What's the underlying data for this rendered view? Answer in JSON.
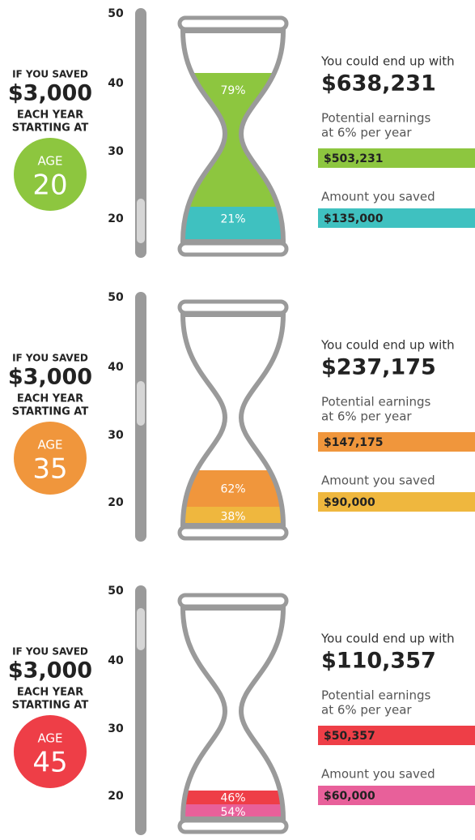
{
  "panels": [
    {
      "intro": [
        "IF YOU SAVED",
        "$3,000",
        "EACH YEAR",
        "STARTING AT"
      ],
      "age_label": "AGE",
      "age": "20",
      "scale": [
        "50",
        "40",
        "30",
        "20"
      ],
      "pct_earnings": "79%",
      "pct_saved": "21%",
      "total_label": "You could end up with",
      "total": "$638,231",
      "earnings_label": [
        "Potential earnings",
        "at 6% per year"
      ],
      "earnings": "$503,231",
      "saved_label": "Amount you saved",
      "saved": "$135,000",
      "colors": {
        "age": "#8dc63f",
        "earnings": "#8dc63f",
        "saved": "#3fc1c0"
      }
    },
    {
      "intro": [
        "IF YOU SAVED",
        "$3,000",
        "EACH YEAR",
        "STARTING AT"
      ],
      "age_label": "AGE",
      "age": "35",
      "scale": [
        "50",
        "40",
        "30",
        "20"
      ],
      "pct_earnings": "62%",
      "pct_saved": "38%",
      "total_label": "You could end up with",
      "total": "$237,175",
      "earnings_label": [
        "Potential earnings",
        "at 6% per year"
      ],
      "earnings": "$147,175",
      "saved_label": "Amount you saved",
      "saved": "$90,000",
      "colors": {
        "age": "#f0963c",
        "earnings": "#f0963c",
        "saved": "#efb73e"
      }
    },
    {
      "intro": [
        "IF YOU SAVED",
        "$3,000",
        "EACH YEAR",
        "STARTING AT"
      ],
      "age_label": "AGE",
      "age": "45",
      "scale": [
        "50",
        "40",
        "30",
        "20"
      ],
      "pct_earnings": "46%",
      "pct_saved": "54%",
      "total_label": "You could end up with",
      "total": "$110,357",
      "earnings_label": [
        "Potential earnings",
        "at 6% per year"
      ],
      "earnings": "$50,357",
      "saved_label": "Amount you saved",
      "saved": "$60,000",
      "colors": {
        "age": "#ee3e47",
        "earnings": "#ee3e47",
        "saved": "#e8609a"
      }
    }
  ]
}
